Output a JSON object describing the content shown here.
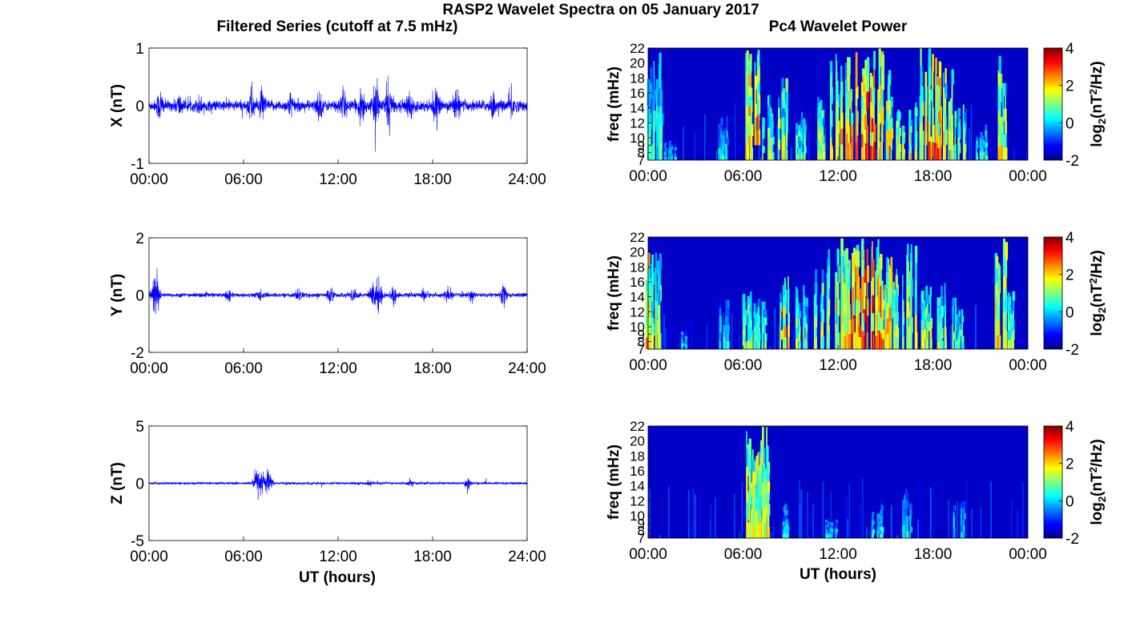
{
  "title": "RASP2 Wavelet Spectra on 05 January 2017",
  "left_title": "Filtered Series (cutoff at 7.5 mHz)",
  "right_title": "Pc4 Wavelet Power",
  "xlabel": "UT (hours)",
  "colorbar": {
    "label_prefix": "log",
    "label_sub": "2",
    "label_mid": "(nT",
    "label_sup": "2",
    "label_suffix": "/Hz)",
    "ticks": [
      "4",
      "2",
      "0",
      "-2"
    ],
    "range": [
      -2,
      4
    ],
    "colormap": "jet"
  },
  "time_ticks_left": [
    "00:00",
    "06:00",
    "12:00",
    "18:00",
    "24:00"
  ],
  "time_ticks_right": [
    "00:00",
    "06:00",
    "12:00",
    "18:00",
    "00:00"
  ],
  "freq_ticks": [
    "22",
    "20",
    "18",
    "16",
    "14",
    "12",
    "10",
    "9",
    "8",
    "7"
  ],
  "freq_label": "freq (mHz)",
  "line_color": "#0000ff",
  "chart_data": [
    {
      "type": "line",
      "ylabel": "X (nT)",
      "ylim": [
        -1,
        1
      ],
      "yticks": [
        "1",
        "0",
        "-1"
      ],
      "xlim": [
        0,
        24
      ],
      "activity_bursts": [
        {
          "t": 0.7,
          "amp": 0.5
        },
        {
          "t": 1.9,
          "amp": 0.3
        },
        {
          "t": 3.2,
          "amp": 0.2
        },
        {
          "t": 6.5,
          "amp": 0.55
        },
        {
          "t": 7.2,
          "amp": 0.4
        },
        {
          "t": 9.0,
          "amp": 0.35
        },
        {
          "t": 10.8,
          "amp": 0.4
        },
        {
          "t": 12.3,
          "amp": 0.5
        },
        {
          "t": 13.5,
          "amp": 0.6
        },
        {
          "t": 14.4,
          "amp": 0.7
        },
        {
          "t": 15.2,
          "amp": 0.9
        },
        {
          "t": 16.5,
          "amp": 0.45
        },
        {
          "t": 18.2,
          "amp": 0.45
        },
        {
          "t": 19.5,
          "amp": 0.5
        },
        {
          "t": 21.8,
          "amp": 0.35
        },
        {
          "t": 23.0,
          "amp": 0.45
        }
      ],
      "baseline_amp": 0.1
    },
    {
      "type": "line",
      "ylabel": "Y (nT)",
      "ylim": [
        -2,
        2
      ],
      "yticks": [
        "2",
        "0",
        "-2"
      ],
      "xlim": [
        0,
        24
      ],
      "activity_bursts": [
        {
          "t": 0.3,
          "amp": 0.9
        },
        {
          "t": 0.5,
          "amp": 1.1
        },
        {
          "t": 5.0,
          "amp": 0.3
        },
        {
          "t": 7.0,
          "amp": 0.3
        },
        {
          "t": 9.5,
          "amp": 0.4
        },
        {
          "t": 11.5,
          "amp": 0.5
        },
        {
          "t": 13.0,
          "amp": 0.6
        },
        {
          "t": 14.2,
          "amp": 1.0
        },
        {
          "t": 14.6,
          "amp": 1.2
        },
        {
          "t": 15.5,
          "amp": 0.6
        },
        {
          "t": 17.5,
          "amp": 0.45
        },
        {
          "t": 19.0,
          "amp": 0.45
        },
        {
          "t": 20.5,
          "amp": 0.35
        },
        {
          "t": 22.5,
          "amp": 0.8
        }
      ],
      "baseline_amp": 0.08
    },
    {
      "type": "line",
      "ylabel": "Z (nT)",
      "ylim": [
        -5,
        5
      ],
      "yticks": [
        "5",
        "0",
        "-5"
      ],
      "xlim": [
        0,
        24
      ],
      "activity_bursts": [
        {
          "t": 6.8,
          "amp": 2.3
        },
        {
          "t": 7.2,
          "amp": 1.8
        },
        {
          "t": 7.6,
          "amp": 2.2
        },
        {
          "t": 14.0,
          "amp": 0.4
        },
        {
          "t": 16.6,
          "amp": 0.6
        },
        {
          "t": 20.2,
          "amp": 1.0
        }
      ],
      "baseline_amp": 0.12
    },
    {
      "type": "heatmap",
      "ylabel": "freq (mHz)",
      "ylim": [
        7,
        22
      ],
      "xlim": [
        0,
        24
      ],
      "zlim": [
        -2,
        4
      ],
      "background": -2,
      "ridges": [
        {
          "t": 0.2,
          "f0": 7,
          "f1": 22,
          "power": 1.0
        },
        {
          "t": 0.5,
          "f0": 7,
          "f1": 22,
          "power": 0.8
        },
        {
          "t": 1.3,
          "f0": 7,
          "f1": 10,
          "power": 0.2
        },
        {
          "t": 4.6,
          "f0": 7,
          "f1": 13,
          "power": 0.3
        },
        {
          "t": 6.3,
          "f0": 7,
          "f1": 22,
          "power": 2.5
        },
        {
          "t": 6.6,
          "f0": 9,
          "f1": 22,
          "power": 3.0
        },
        {
          "t": 7.5,
          "f0": 7,
          "f1": 16,
          "power": 1.5
        },
        {
          "t": 8.5,
          "f0": 7,
          "f1": 18,
          "power": 2.0
        },
        {
          "t": 9.5,
          "f0": 7,
          "f1": 14,
          "power": 1.2
        },
        {
          "t": 10.8,
          "f0": 7,
          "f1": 16,
          "power": 1.8
        },
        {
          "t": 11.8,
          "f0": 7,
          "f1": 22,
          "power": 2.2
        },
        {
          "t": 12.5,
          "f0": 7,
          "f1": 22,
          "power": 2.8
        },
        {
          "t": 13.3,
          "f0": 7,
          "f1": 22,
          "power": 3.5
        },
        {
          "t": 13.9,
          "f0": 7,
          "f1": 22,
          "power": 3.8
        },
        {
          "t": 14.5,
          "f0": 7,
          "f1": 22,
          "power": 3.2
        },
        {
          "t": 15.1,
          "f0": 7,
          "f1": 20,
          "power": 2.6
        },
        {
          "t": 15.8,
          "f0": 7,
          "f1": 14,
          "power": 2.2
        },
        {
          "t": 16.8,
          "f0": 7,
          "f1": 16,
          "power": 1.8
        },
        {
          "t": 17.5,
          "f0": 7,
          "f1": 22,
          "power": 2.8
        },
        {
          "t": 18.2,
          "f0": 7,
          "f1": 22,
          "power": 3.0
        },
        {
          "t": 18.9,
          "f0": 7,
          "f1": 20,
          "power": 2.6
        },
        {
          "t": 19.6,
          "f0": 7,
          "f1": 16,
          "power": 1.8
        },
        {
          "t": 21.0,
          "f0": 7,
          "f1": 12,
          "power": 0.8
        },
        {
          "t": 22.3,
          "f0": 7,
          "f1": 22,
          "power": 2.4
        }
      ]
    },
    {
      "type": "heatmap",
      "ylabel": "freq (mHz)",
      "ylim": [
        7,
        22
      ],
      "xlim": [
        0,
        24
      ],
      "zlim": [
        -2,
        4
      ],
      "background": -2,
      "ridges": [
        {
          "t": 0.1,
          "f0": 7,
          "f1": 22,
          "power": 3.0
        },
        {
          "t": 0.4,
          "f0": 7,
          "f1": 22,
          "power": 1.5
        },
        {
          "t": 2.2,
          "f0": 7,
          "f1": 10,
          "power": 0.4
        },
        {
          "t": 4.8,
          "f0": 7,
          "f1": 14,
          "power": 0.4
        },
        {
          "t": 6.2,
          "f0": 7,
          "f1": 16,
          "power": 1.6
        },
        {
          "t": 7.0,
          "f0": 7,
          "f1": 14,
          "power": 1.0
        },
        {
          "t": 8.6,
          "f0": 7,
          "f1": 18,
          "power": 2.4
        },
        {
          "t": 9.6,
          "f0": 7,
          "f1": 16,
          "power": 1.4
        },
        {
          "t": 10.8,
          "f0": 7,
          "f1": 18,
          "power": 1.8
        },
        {
          "t": 11.6,
          "f0": 7,
          "f1": 22,
          "power": 2.2
        },
        {
          "t": 12.4,
          "f0": 7,
          "f1": 22,
          "power": 2.8
        },
        {
          "t": 13.2,
          "f0": 7,
          "f1": 22,
          "power": 3.4
        },
        {
          "t": 13.8,
          "f0": 7,
          "f1": 22,
          "power": 4.0
        },
        {
          "t": 14.4,
          "f0": 7,
          "f1": 22,
          "power": 3.6
        },
        {
          "t": 15.0,
          "f0": 7,
          "f1": 20,
          "power": 2.8
        },
        {
          "t": 15.8,
          "f0": 7,
          "f1": 18,
          "power": 2.2
        },
        {
          "t": 16.6,
          "f0": 7,
          "f1": 22,
          "power": 2.2
        },
        {
          "t": 17.5,
          "f0": 7,
          "f1": 18,
          "power": 2.0
        },
        {
          "t": 18.4,
          "f0": 7,
          "f1": 16,
          "power": 1.6
        },
        {
          "t": 19.5,
          "f0": 7,
          "f1": 14,
          "power": 1.2
        },
        {
          "t": 22.2,
          "f0": 7,
          "f1": 22,
          "power": 2.6
        },
        {
          "t": 22.7,
          "f0": 7,
          "f1": 16,
          "power": 1.6
        }
      ]
    },
    {
      "type": "heatmap",
      "ylabel": "freq (mHz)",
      "ylim": [
        7,
        22
      ],
      "xlim": [
        0,
        24
      ],
      "zlim": [
        -2,
        4
      ],
      "background": -2,
      "ridges": [
        {
          "t": 6.5,
          "f0": 7,
          "f1": 22,
          "power": 2.0
        },
        {
          "t": 6.8,
          "f0": 7,
          "f1": 22,
          "power": 2.8
        },
        {
          "t": 7.2,
          "f0": 7,
          "f1": 22,
          "power": 2.2
        },
        {
          "t": 8.8,
          "f0": 7,
          "f1": 12,
          "power": 0.3
        },
        {
          "t": 11.5,
          "f0": 7,
          "f1": 10,
          "power": 0.1
        },
        {
          "t": 14.4,
          "f0": 7,
          "f1": 12,
          "power": 0.6
        },
        {
          "t": 16.4,
          "f0": 7,
          "f1": 13,
          "power": 0.3
        },
        {
          "t": 19.6,
          "f0": 7,
          "f1": 12,
          "power": 0.2
        }
      ]
    }
  ]
}
